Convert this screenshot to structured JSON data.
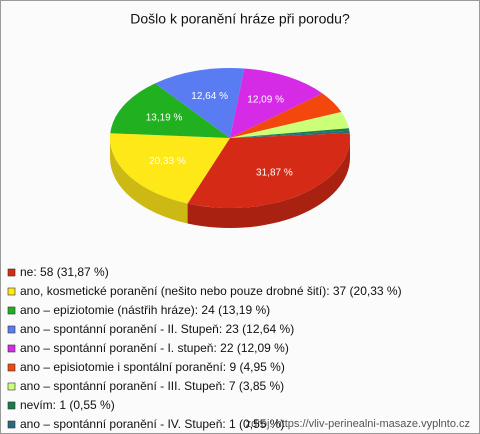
{
  "chart_data": {
    "type": "pie3d",
    "title": "Došlo k poranění hráze při porodu?",
    "categories": [
      "ne: 58 (31,87 %)",
      "ano, kosmetické poranění (nešito nebo pouze drobné šití): 37 (20,33 %)",
      "ano – epiziotomie (nástřih hráze): 24 (13,19 %)",
      "ano – spontánní poranění - II. Stupeň: 23 (12,64 %)",
      "ano – spontánní poranění - I. stupeň: 22 (12,09 %)",
      "ano – episiotomie i spontální poranění: 9 (4,95 %)",
      "ano – spontánní poranění - III. Stupeň: 7 (3,85 %)",
      "nevím: 1 (0,55 %)",
      "ano – spontánní poranění - IV. Stupeň: 1 (0,55 %)"
    ],
    "values": [
      31.87,
      20.33,
      13.19,
      12.64,
      12.09,
      4.95,
      3.85,
      0.55,
      0.55
    ],
    "value_labels": [
      "31,87 %",
      "20,33 %",
      "13,19 %",
      "12,64 %",
      "12,09 %",
      null,
      null,
      null,
      null
    ],
    "colors": [
      "#d42a16",
      "#ffe818",
      "#20b020",
      "#5a7cf2",
      "#d52ae6",
      "#f2480e",
      "#ccff78",
      "#1a7a4a",
      "#2a6880"
    ],
    "source": "zdroj: https://vliv-perinealni-masaze.vyplnto.cz"
  }
}
